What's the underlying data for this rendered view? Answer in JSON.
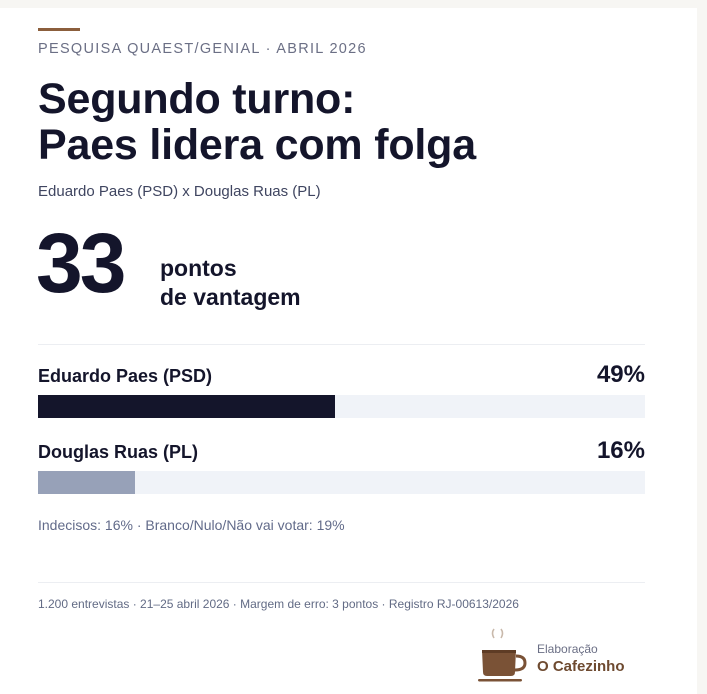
{
  "header": {
    "kicker": "PESQUISA QUAEST/GENIAL · ABRIL 2026",
    "title_line1": "Segundo turno:",
    "title_line2": "Paes lidera com folga",
    "subtitle": "Eduardo Paes (PSD) x Douglas Ruas (PL)"
  },
  "highlight": {
    "number": "33",
    "label_line1": "pontos",
    "label_line2": "de vantagem"
  },
  "candidates": [
    {
      "name": "Eduardo Paes (PSD)",
      "pct_label": "49%",
      "value": 49,
      "color": "#14152b"
    },
    {
      "name": "Douglas Ruas (PL)",
      "pct_label": "16%",
      "value": 16,
      "color": "#97a1b8"
    }
  ],
  "footnote": "Indecisos: 16% · Branco/Nulo/Não vai votar: 19%",
  "methodology": "1.200 entrevistas · 21–25 abril 2026 · Margem de erro: 3 pontos · Registro RJ-00613/2026",
  "credit": {
    "label": "Elaboração",
    "brand": "O Cafezinho",
    "icon": "coffee-cup-icon"
  },
  "colors": {
    "accent": "#8b5e3c",
    "primary_text": "#14152b",
    "muted_text": "#6b6f85",
    "bar_track": "#f0f3f8",
    "brand": "#6e4a30"
  },
  "chart_data": {
    "type": "bar",
    "orientation": "horizontal",
    "title": "Segundo turno: Paes lidera com folga",
    "subtitle": "Eduardo Paes (PSD) x Douglas Ruas (PL)",
    "categories": [
      "Eduardo Paes (PSD)",
      "Douglas Ruas (PL)"
    ],
    "values": [
      49,
      16
    ],
    "unit": "%",
    "xlim": [
      0,
      100
    ],
    "annotations": [
      "33 pontos de vantagem",
      "Indecisos: 16%",
      "Branco/Nulo/Não vai votar: 19%"
    ]
  }
}
